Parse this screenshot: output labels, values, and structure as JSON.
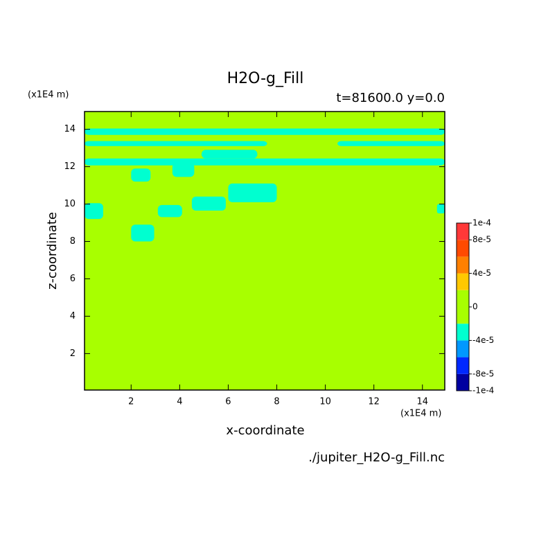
{
  "chart_data": {
    "type": "contourf",
    "title": "H2O-g_Fill",
    "subtitle": "t=81600.0 y=0.0",
    "x_label": "x-coordinate",
    "y_label": "z-coordinate",
    "x_unit": "(x1E4 m)",
    "y_unit": "(x1E4 m)",
    "source": "./jupiter_H2O-g_Fill.nc",
    "xlim": [
      0.08,
      14.92
    ],
    "ylim": [
      0.05,
      14.95
    ],
    "xticks": [
      2,
      4,
      6,
      8,
      10,
      12,
      14
    ],
    "yticks": [
      2,
      4,
      6,
      8,
      10,
      12,
      14
    ],
    "background_value": 0,
    "regions": [
      {
        "x": [
          0.08,
          14.92
        ],
        "z": [
          13.7,
          14.04
        ],
        "value": -3e-05
      },
      {
        "x": [
          0.08,
          7.6
        ],
        "z": [
          13.1,
          13.37
        ],
        "value": -3e-05
      },
      {
        "x": [
          10.5,
          14.92
        ],
        "z": [
          13.1,
          13.37
        ],
        "value": -3e-05
      },
      {
        "x": [
          0.08,
          14.92
        ],
        "z": [
          12.07,
          12.44
        ],
        "value": -3e-05
      },
      {
        "x": [
          4.9,
          7.2
        ],
        "z": [
          12.44,
          12.9
        ],
        "value": -3e-05
      },
      {
        "x": [
          2.0,
          2.8
        ],
        "z": [
          11.2,
          11.9
        ],
        "value": -3e-05
      },
      {
        "x": [
          3.7,
          4.6
        ],
        "z": [
          11.45,
          12.2
        ],
        "value": -3e-05
      },
      {
        "x": [
          4.5,
          5.9
        ],
        "z": [
          9.65,
          10.4
        ],
        "value": -3e-05
      },
      {
        "x": [
          6.0,
          8.0
        ],
        "z": [
          10.1,
          11.1
        ],
        "value": -3e-05
      },
      {
        "x": [
          3.1,
          4.1
        ],
        "z": [
          9.3,
          9.95
        ],
        "value": -3e-05
      },
      {
        "x": [
          0.08,
          0.85
        ],
        "z": [
          9.2,
          10.05
        ],
        "value": -3e-05
      },
      {
        "x": [
          14.6,
          14.92
        ],
        "z": [
          9.5,
          10.0
        ],
        "value": -3e-05
      },
      {
        "x": [
          2.0,
          2.95
        ],
        "z": [
          8.0,
          8.9
        ],
        "value": -3e-05
      }
    ],
    "colorbar": {
      "levels": [
        -0.0001,
        -8e-05,
        -6e-05,
        -4e-05,
        -2e-05,
        2e-05,
        4e-05,
        6e-05,
        8e-05,
        0.0001
      ],
      "colors": [
        "#0000a0",
        "#0028ff",
        "#0098ff",
        "#00ffd0",
        "#a8ff00",
        "#ffc800",
        "#ff8000",
        "#ff4a00",
        "#ff3838"
      ],
      "ticks": [
        {
          "value": 0.0001,
          "label": "1e-4"
        },
        {
          "value": 8e-05,
          "label": "8e-5"
        },
        {
          "value": 4e-05,
          "label": "4e-5"
        },
        0,
        {
          "value": -4e-05,
          "label": "-4e-5"
        },
        {
          "value": -8e-05,
          "label": "-8e-5"
        },
        {
          "value": -0.0001,
          "label": "-1e-4"
        }
      ]
    }
  }
}
